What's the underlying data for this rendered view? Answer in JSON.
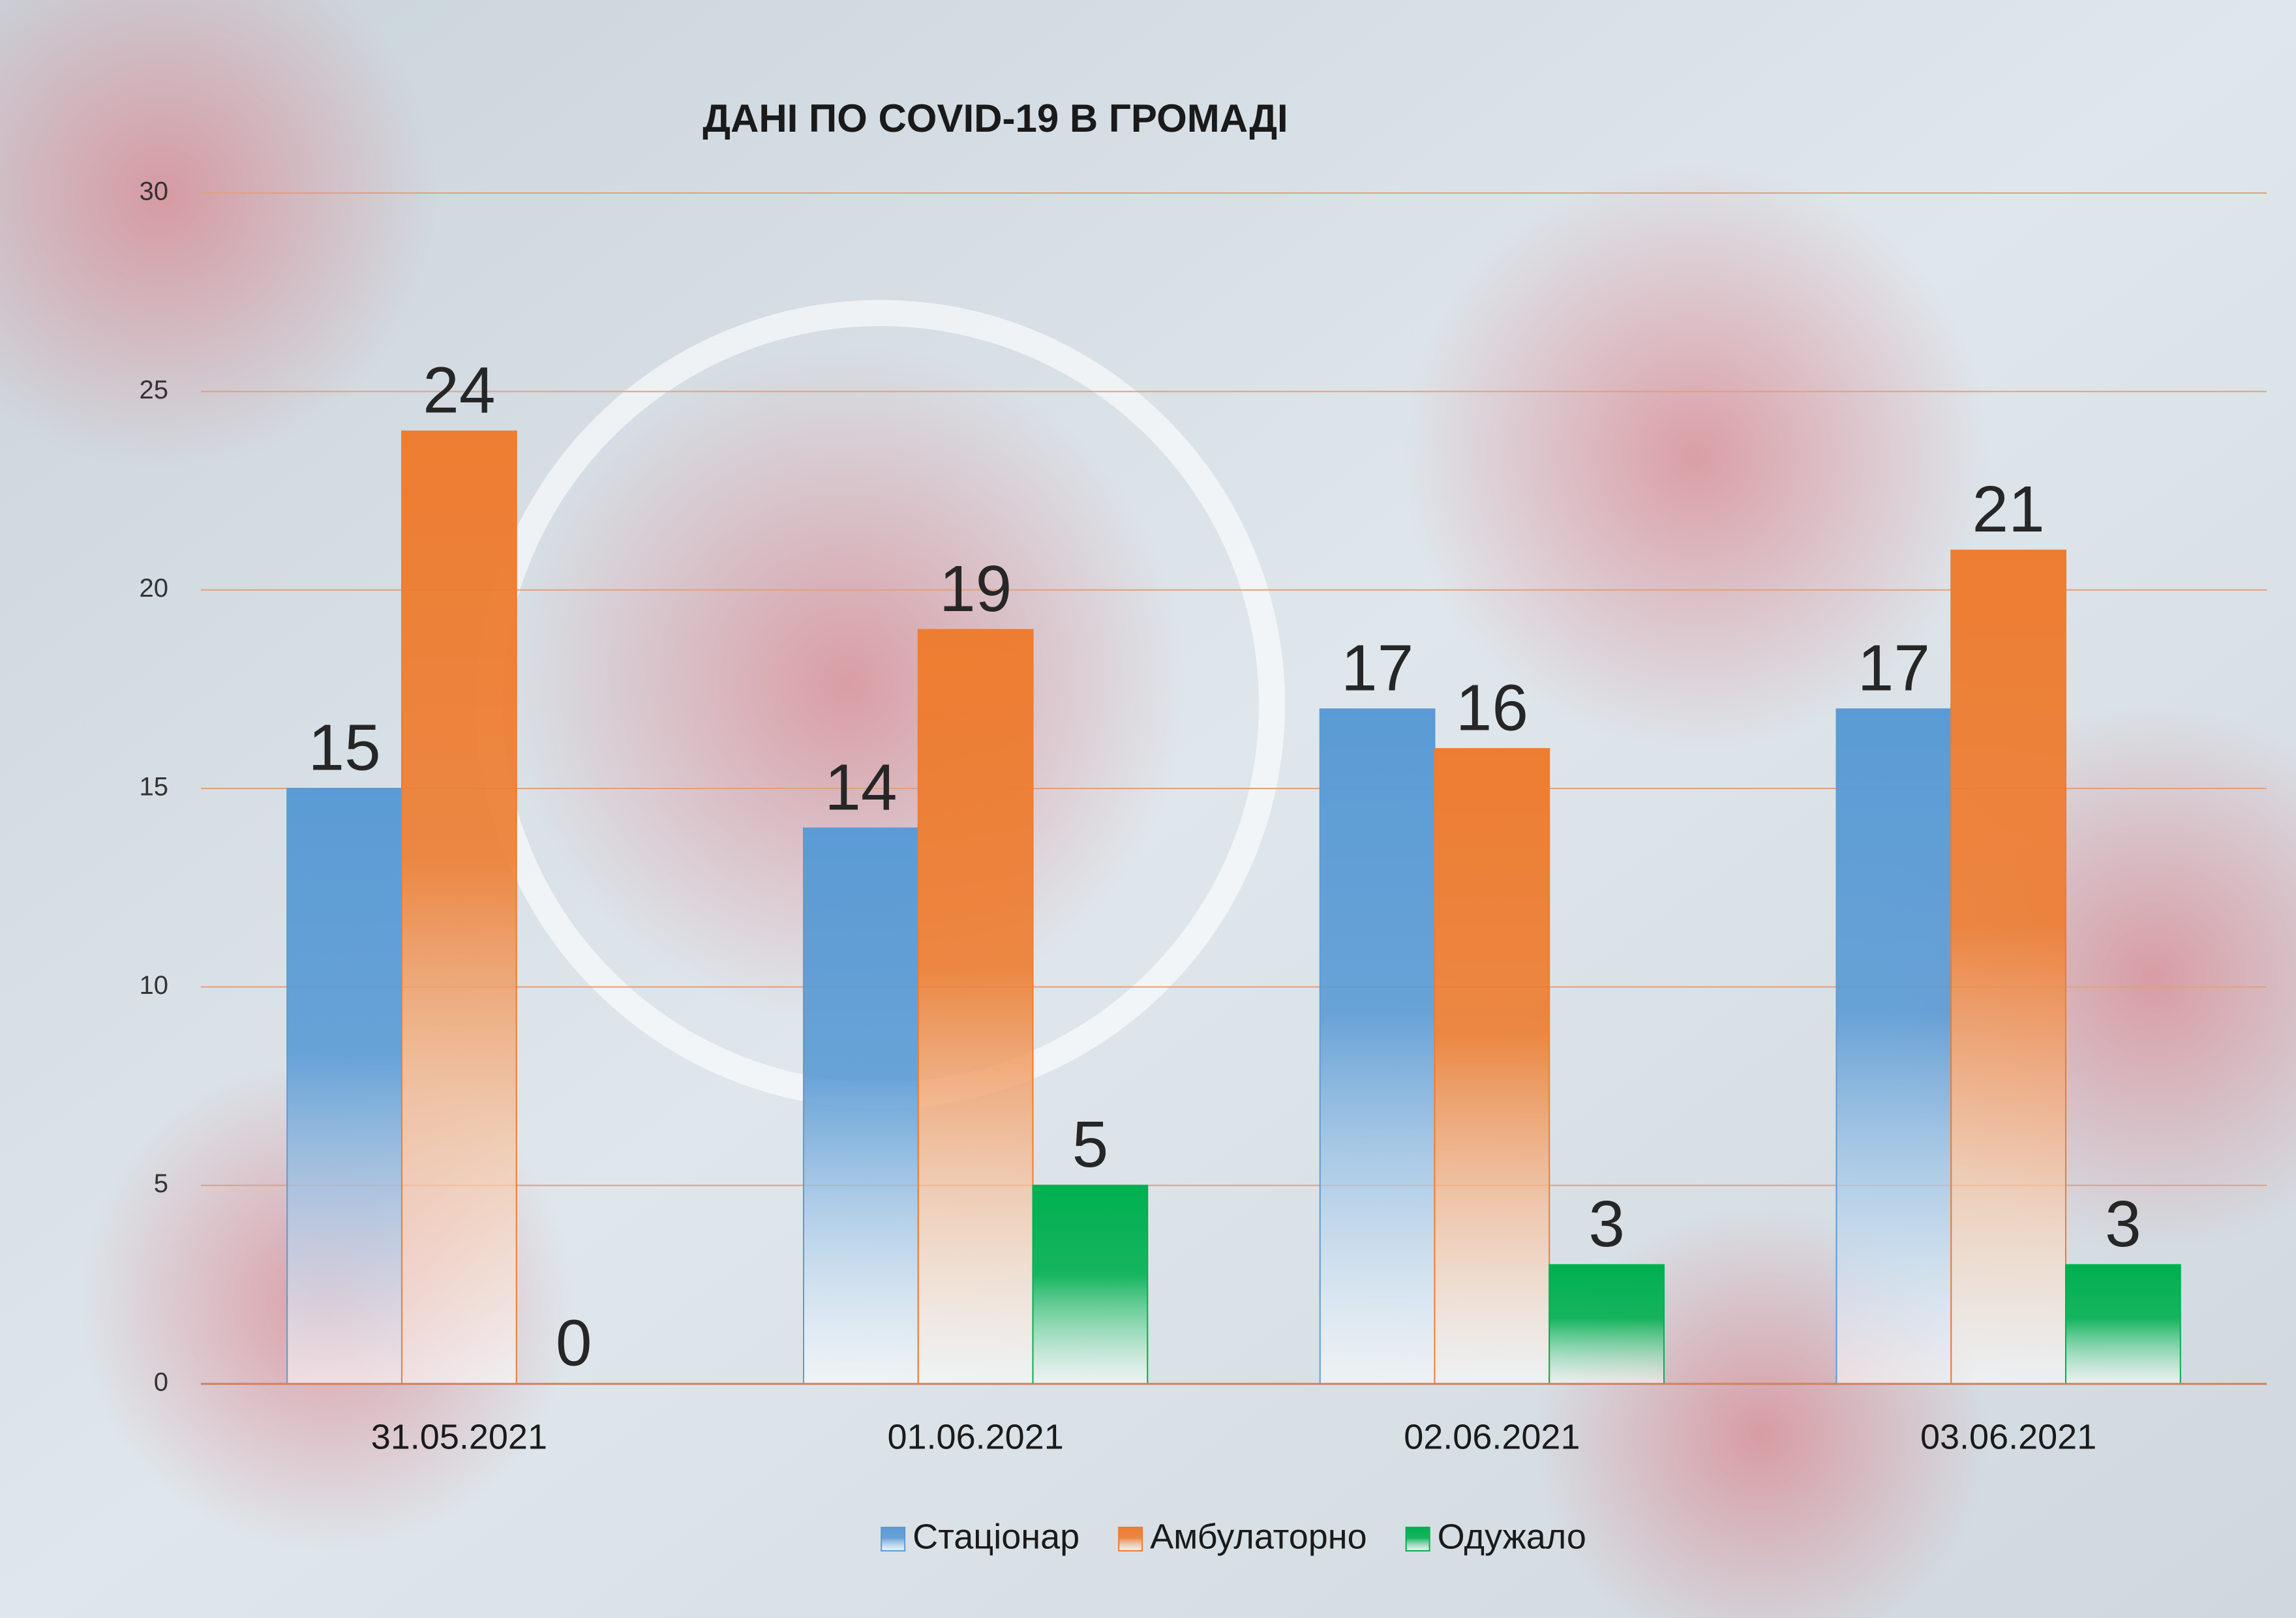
{
  "chart_data": {
    "type": "bar",
    "title": "ДАНІ ПО COVID-19 В ГРОМАДІ",
    "categories": [
      "31.05.2021",
      "01.06.2021",
      "02.06.2021",
      "03.06.2021"
    ],
    "series": [
      {
        "name": "Стаціонар",
        "color": "#5b9bd5",
        "values": [
          15,
          14,
          17,
          17
        ]
      },
      {
        "name": "Амбулаторно",
        "color": "#ed7d31",
        "values": [
          24,
          19,
          16,
          21
        ]
      },
      {
        "name": "Одужало",
        "color": "#00b050",
        "values": [
          0,
          5,
          3,
          3
        ]
      }
    ],
    "ylim": [
      0,
      30
    ],
    "yticks": [
      0,
      5,
      10,
      15,
      20,
      25,
      30
    ],
    "grid": true,
    "legend": "bottom"
  }
}
